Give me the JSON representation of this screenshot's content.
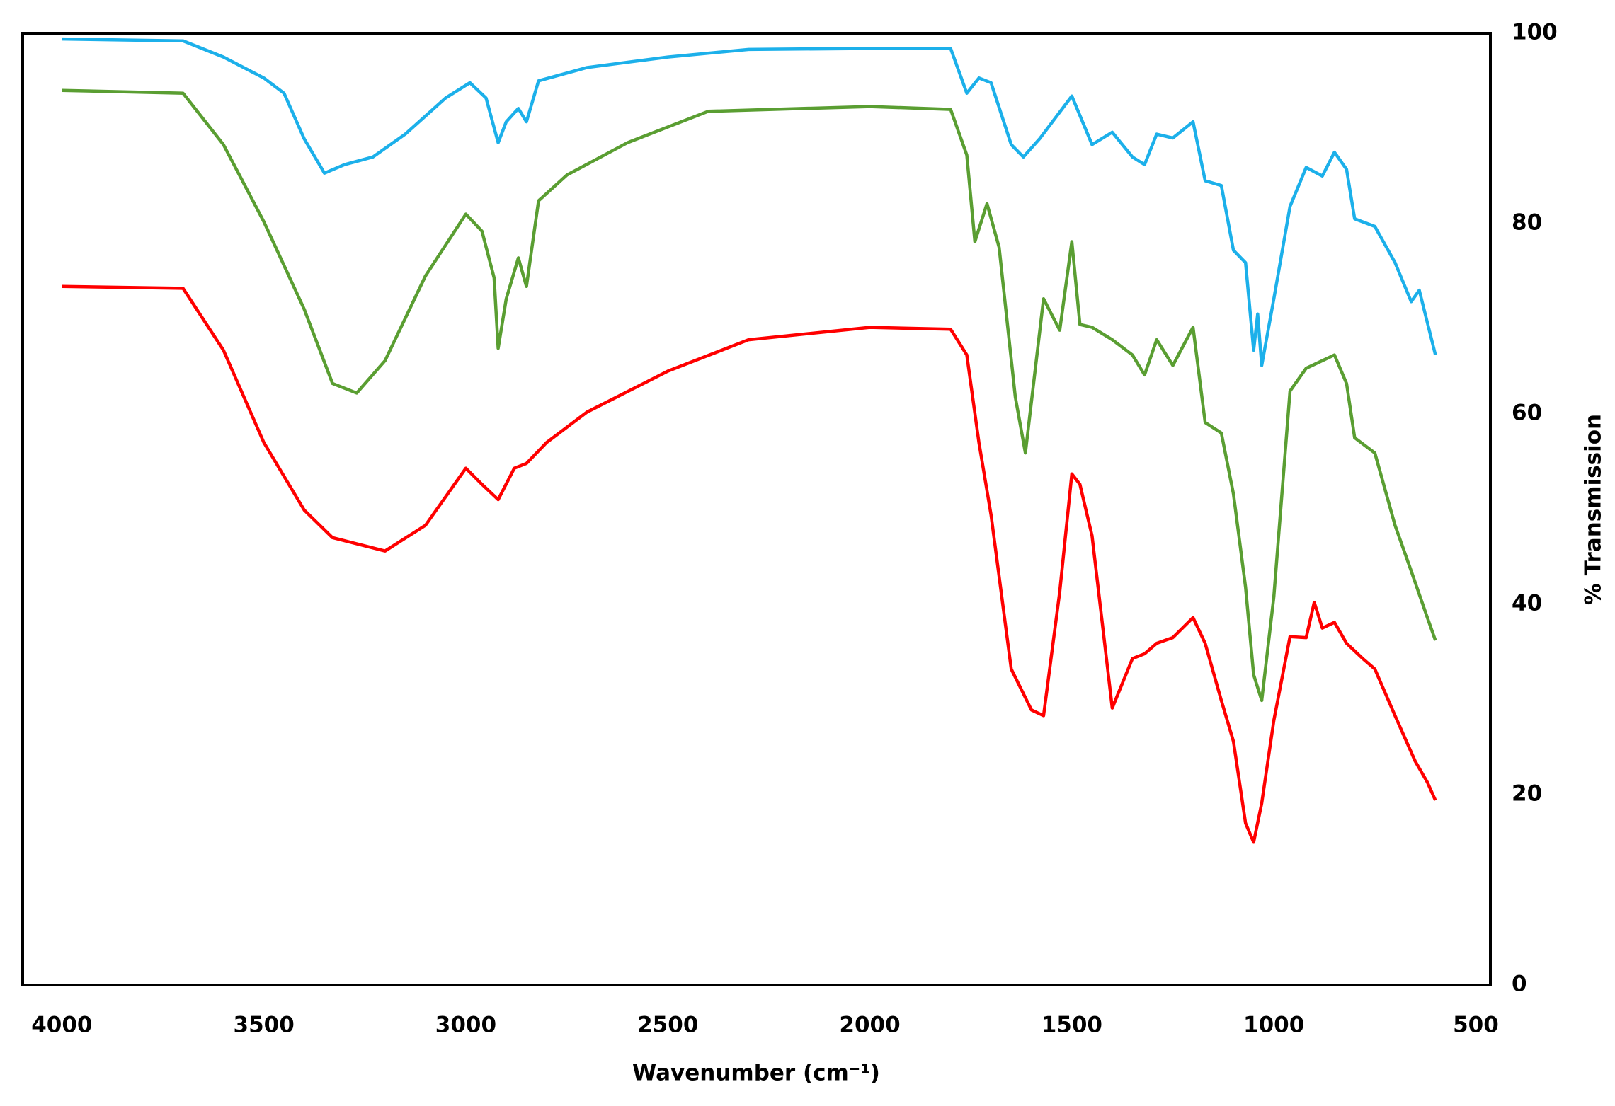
{
  "chart_data": {
    "type": "line",
    "x_label": "Wavenumber (cm⁻¹)",
    "y_label": "% Transmission",
    "xlim": [
      4097,
      464
    ],
    "xticks": [
      4000,
      3500,
      3000,
      2500,
      2000,
      1500,
      1000,
      500
    ],
    "ylim": [
      0,
      100
    ],
    "yticks": [
      0,
      20,
      40,
      60,
      80,
      100
    ],
    "y_axis_side": "right",
    "grid": false,
    "series": [
      {
        "color": "#1cb0ea",
        "x": [
          4000,
          3700,
          3600,
          3500,
          3450,
          3400,
          3350,
          3300,
          3230,
          3150,
          3050,
          2990,
          2950,
          2920,
          2900,
          2870,
          2850,
          2820,
          2700,
          2500,
          2300,
          2000,
          1800,
          1760,
          1730,
          1700,
          1650,
          1620,
          1580,
          1500,
          1450,
          1400,
          1350,
          1320,
          1290,
          1250,
          1200,
          1170,
          1130,
          1100,
          1070,
          1050,
          1040,
          1030,
          1000,
          960,
          920,
          880,
          850,
          820,
          800,
          750,
          700,
          660,
          640,
          600
        ],
        "values": [
          99.4,
          99.2,
          97.5,
          95.3,
          93.7,
          88.9,
          85.3,
          86.2,
          87,
          89.4,
          93.2,
          94.8,
          93.2,
          88.5,
          90.7,
          92.1,
          90.7,
          95,
          96.4,
          97.5,
          98.3,
          98.4,
          98.4,
          93.7,
          95.3,
          94.8,
          88.3,
          87,
          88.9,
          93.4,
          88.3,
          89.6,
          87,
          86.2,
          89.4,
          89,
          90.7,
          84.5,
          84,
          77.2,
          75.9,
          66.7,
          70.5,
          65.1,
          72.1,
          81.8,
          85.9,
          85,
          87.5,
          85.7,
          80.5,
          79.7,
          75.9,
          71.8,
          73,
          66.2
        ]
      },
      {
        "color": "#5a9e32",
        "x": [
          4000,
          3700,
          3600,
          3500,
          3400,
          3330,
          3270,
          3200,
          3100,
          3000,
          2960,
          2930,
          2920,
          2900,
          2870,
          2850,
          2820,
          2750,
          2600,
          2400,
          2000,
          1800,
          1760,
          1740,
          1710,
          1680,
          1640,
          1615,
          1570,
          1530,
          1500,
          1480,
          1450,
          1400,
          1350,
          1320,
          1290,
          1250,
          1200,
          1170,
          1130,
          1100,
          1070,
          1050,
          1030,
          1000,
          960,
          920,
          880,
          850,
          820,
          800,
          750,
          700,
          660,
          620,
          600
        ],
        "values": [
          94,
          93.7,
          88.3,
          80.2,
          71,
          63.2,
          62.2,
          65.6,
          74.5,
          81,
          79.2,
          74.3,
          66.9,
          72.1,
          76.4,
          73.4,
          82.4,
          85.1,
          88.5,
          91.8,
          92.3,
          92,
          87.2,
          78.1,
          82.1,
          77.5,
          61.8,
          55.9,
          72.1,
          68.8,
          78.1,
          69.4,
          69.1,
          67.8,
          66.2,
          64.1,
          67.8,
          65.1,
          69.1,
          59.1,
          58,
          51.6,
          41.8,
          32.6,
          29.9,
          40.8,
          62.4,
          64.8,
          65.6,
          66.2,
          63.2,
          57.5,
          55.9,
          48.3,
          43.5,
          38.6,
          36.2
        ]
      },
      {
        "color": "#ff0000",
        "x": [
          4000,
          3700,
          3600,
          3500,
          3400,
          3330,
          3200,
          3100,
          3000,
          2960,
          2920,
          2880,
          2850,
          2800,
          2700,
          2500,
          2300,
          2000,
          1800,
          1760,
          1730,
          1700,
          1650,
          1600,
          1570,
          1530,
          1500,
          1480,
          1450,
          1400,
          1350,
          1320,
          1290,
          1250,
          1200,
          1170,
          1130,
          1100,
          1070,
          1050,
          1030,
          1000,
          960,
          920,
          900,
          880,
          850,
          820,
          780,
          750,
          700,
          650,
          620,
          600
        ],
        "values": [
          73.4,
          73.2,
          66.7,
          57,
          49.9,
          47,
          45.6,
          48.3,
          54.3,
          52.6,
          51,
          54.3,
          54.8,
          57,
          60.2,
          64.5,
          67.8,
          69.1,
          68.9,
          66.2,
          57,
          49.4,
          33.2,
          28.9,
          28.3,
          41.3,
          53.7,
          52.6,
          47.2,
          29.1,
          34.3,
          34.8,
          35.9,
          36.5,
          38.6,
          35.9,
          29.9,
          25.6,
          17,
          15,
          19.1,
          27.8,
          36.6,
          36.5,
          40.2,
          37.5,
          38.1,
          35.9,
          34.3,
          33.2,
          28.3,
          23.5,
          21.3,
          19.4
        ]
      }
    ]
  }
}
